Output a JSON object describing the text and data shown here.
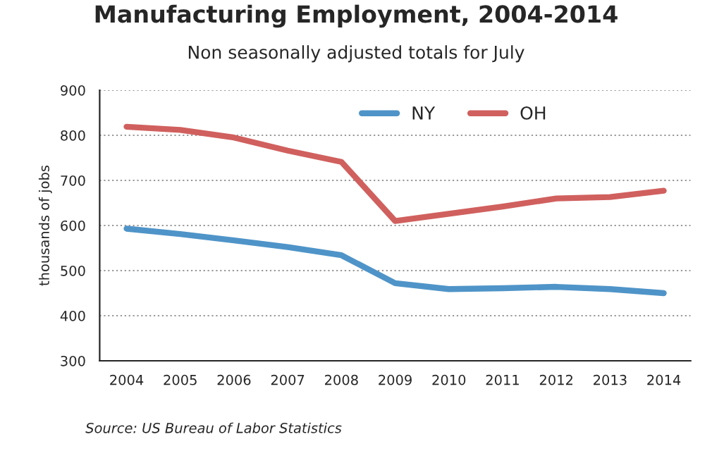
{
  "chart_data": {
    "type": "line",
    "title": "Manufacturing Employment, 2004-2014",
    "subtitle": "Non seasonally adjusted totals for July",
    "ylabel": "thousands of jobs",
    "categories": [
      "2004",
      "2005",
      "2006",
      "2007",
      "2008",
      "2009",
      "2010",
      "2011",
      "2012",
      "2013",
      "2014"
    ],
    "series": [
      {
        "name": "NY",
        "color": "#4f94c8",
        "values": [
          593,
          581,
          567,
          552,
          534,
          472,
          459,
          461,
          464,
          459,
          450
        ]
      },
      {
        "name": "OH",
        "color": "#d0605e",
        "values": [
          819,
          812,
          795,
          766,
          741,
          610,
          626,
          642,
          660,
          663,
          677
        ]
      }
    ],
    "ylim": [
      300,
      900
    ],
    "yticks": [
      300,
      400,
      500,
      600,
      700,
      800,
      900
    ],
    "grid": "y",
    "legend": "top",
    "marker": "none",
    "line_style": "solid",
    "annotations": [
      "Source: US Bureau of Labor Statistics"
    ]
  }
}
